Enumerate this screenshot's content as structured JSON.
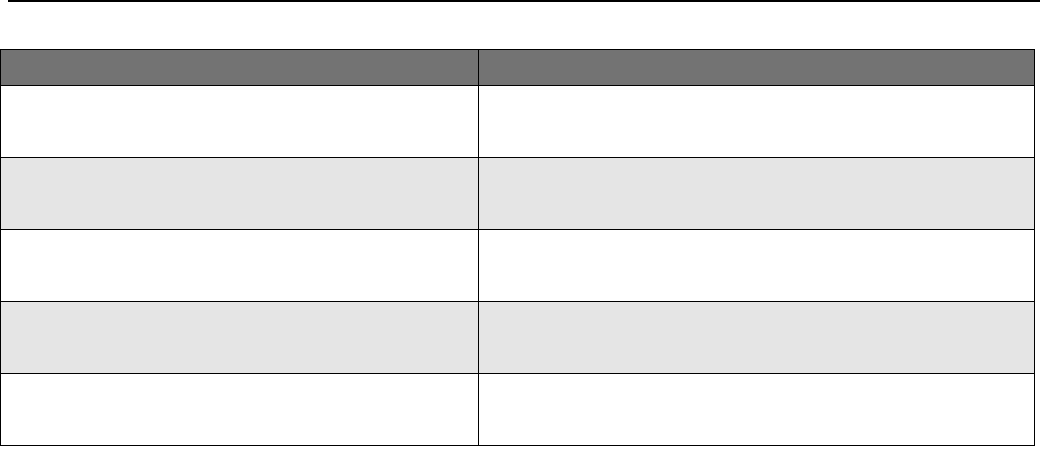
{
  "colors": {
    "header_bg": "#737373",
    "alt_row_bg": "#e5e5e5",
    "border": "#000000"
  },
  "table": {
    "headers": [
      "",
      ""
    ],
    "rows": [
      [
        "",
        ""
      ],
      [
        "",
        ""
      ],
      [
        "",
        ""
      ],
      [
        "",
        ""
      ],
      [
        "",
        ""
      ]
    ]
  }
}
